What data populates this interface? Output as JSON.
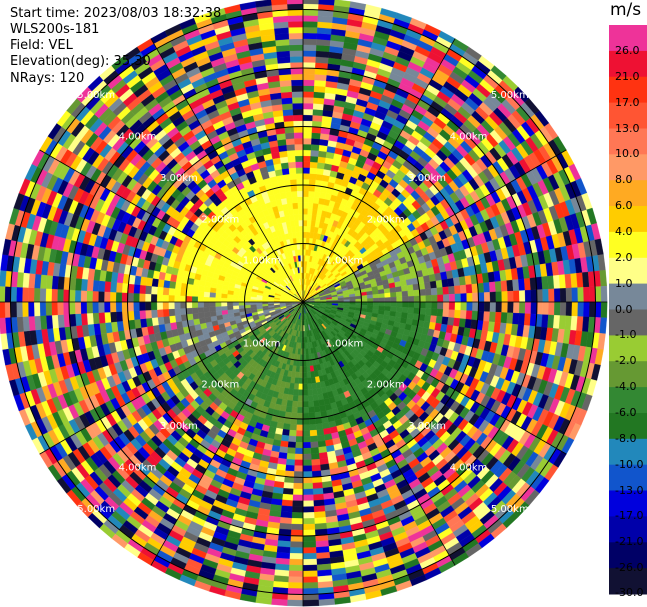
{
  "header": {
    "start_time": "Start time: 2023/08/03 18:32:38",
    "instrument": "WLS200s-181",
    "field": "Field: VEL",
    "elevation": "Elevation(deg): 35.30",
    "nrays": "NRays: 120"
  },
  "colorbar": {
    "unit": "m/s",
    "levels": [
      {
        "label": "26.0",
        "color": "#ee3399"
      },
      {
        "label": "21.0",
        "color": "#ee1133"
      },
      {
        "label": "17.0",
        "color": "#ff3311"
      },
      {
        "label": "13.0",
        "color": "#ff5533"
      },
      {
        "label": "10.0",
        "color": "#ff7755"
      },
      {
        "label": "8.0",
        "color": "#ff9966"
      },
      {
        "label": "6.0",
        "color": "#ffaa22"
      },
      {
        "label": "4.0",
        "color": "#ffcc00"
      },
      {
        "label": "2.0",
        "color": "#ffff22"
      },
      {
        "label": "1.0",
        "color": "#ffff88"
      },
      {
        "label": "0.0",
        "color": "#778899"
      },
      {
        "label": "-1.0",
        "color": "#666666"
      },
      {
        "label": "-2.0",
        "color": "#99cc33"
      },
      {
        "label": "-4.0",
        "color": "#669933"
      },
      {
        "label": "-6.0",
        "color": "#338833"
      },
      {
        "label": "-8.0",
        "color": "#227722"
      },
      {
        "label": "-10.0",
        "color": "#2288bb"
      },
      {
        "label": "-13.0",
        "color": "#1155cc"
      },
      {
        "label": "-17.0",
        "color": "#0000dd"
      },
      {
        "label": "-21.0",
        "color": "#0000aa"
      },
      {
        "label": "-26.0",
        "color": "#000066"
      },
      {
        "label": "-30.0",
        "color": "#111133"
      }
    ]
  },
  "chart_data": {
    "type": "heatmap",
    "projection": "polar PPI",
    "field": "VEL",
    "units": "m/s",
    "nrays": 120,
    "elevation_deg": 35.3,
    "range_rings": [
      {
        "label": "1.00km"
      },
      {
        "label": "2.00km"
      },
      {
        "label": "3.00km"
      },
      {
        "label": "4.00km"
      },
      {
        "label": "5.00km"
      }
    ],
    "spoke_angles_deg": [
      0,
      30,
      60,
      90,
      120,
      150,
      180,
      210,
      240,
      270,
      300,
      330
    ],
    "ring_label_angles_deg": [
      45,
      135,
      225,
      315
    ],
    "approx_radial_velocity_by_sector": [
      {
        "azimuth_from_deg": 270,
        "azimuth_to_deg": 360,
        "velocity_ms": 3
      },
      {
        "azimuth_from_deg": 0,
        "azimuth_to_deg": 60,
        "velocity_ms": 4
      },
      {
        "azimuth_from_deg": 60,
        "azimuth_to_deg": 90,
        "velocity_ms": -1
      },
      {
        "azimuth_from_deg": 90,
        "azimuth_to_deg": 180,
        "velocity_ms": -6
      },
      {
        "azimuth_from_deg": 180,
        "azimuth_to_deg": 240,
        "velocity_ms": -4
      },
      {
        "azimuth_from_deg": 240,
        "azimuth_to_deg": 270,
        "velocity_ms": 0
      }
    ],
    "valid_data_max_range_km": 2.2,
    "max_range_km": 5.2
  }
}
